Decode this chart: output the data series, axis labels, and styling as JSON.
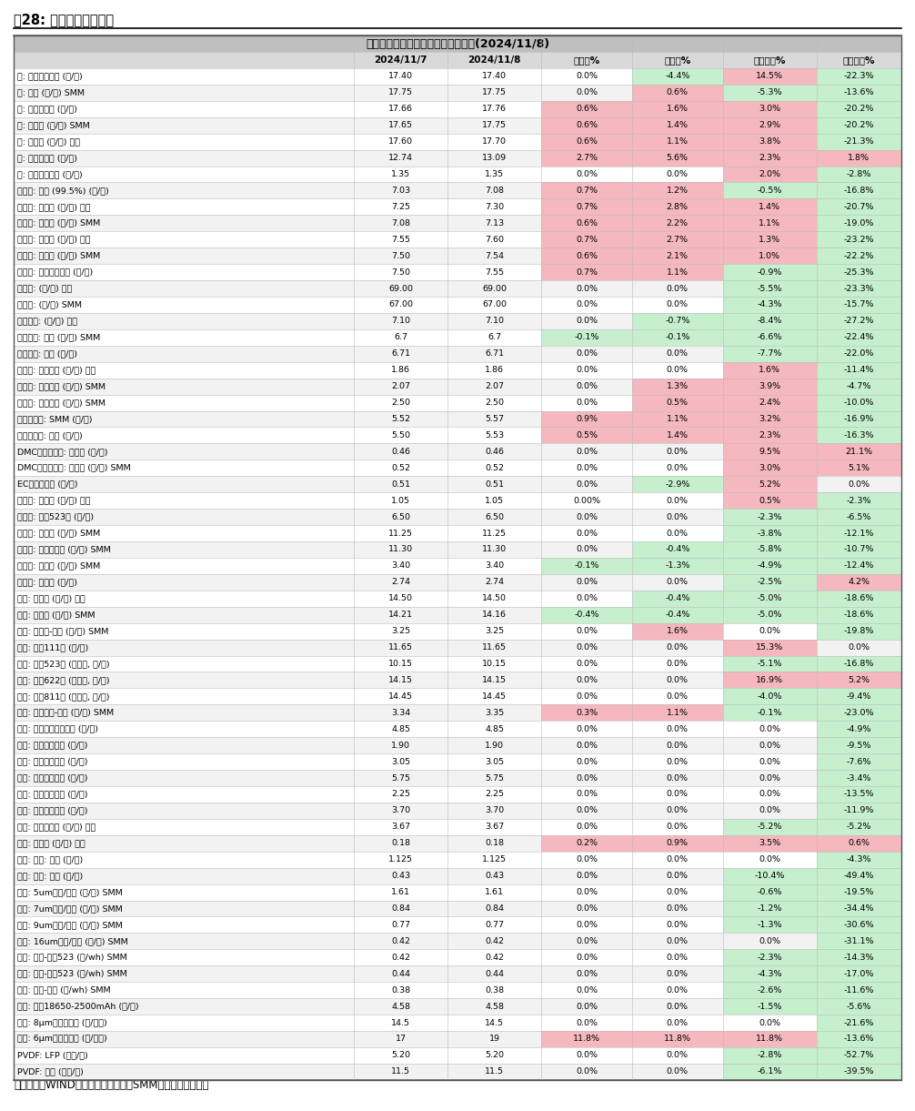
{
  "title": "》东吴电新「 锂电材料价格每日涨跌(2024/11/8)",
  "figure_title": "图28: 锂电材料价格情况",
  "footer": "数据来源：WIND、鑫樱资讯、百川、SMM、东吴证券研究所",
  "title_text": "【东吴电新】锂电材料价格每日涨跌(2024/11/8)",
  "headers": [
    "",
    "2024/11/7",
    "2024/11/8",
    "日环比%",
    "周环比%",
    "月初环比%",
    "年初环比%"
  ],
  "rows": [
    [
      "钔: 长江有色市场 (万/吨)",
      "17.40",
      "17.40",
      "0.0%",
      "-4.4%",
      "14.5%",
      "-22.3%"
    ],
    [
      "钔: 钔粉 (万/吨) SMM",
      "17.75",
      "17.75",
      "0.0%",
      "0.6%",
      "-5.3%",
      "-13.6%"
    ],
    [
      "钔: 金川赞比亚 (万/吨)",
      "17.66",
      "17.76",
      "0.6%",
      "1.6%",
      "3.0%",
      "-20.2%"
    ],
    [
      "钔: 电解钔 (万/吨) SMM",
      "17.65",
      "17.75",
      "0.6%",
      "1.4%",
      "2.9%",
      "-20.2%"
    ],
    [
      "钔: 金属钔 (万/吨) 百川",
      "17.60",
      "17.70",
      "0.6%",
      "1.1%",
      "3.8%",
      "-21.3%"
    ],
    [
      "镖: 上海金属网 (万/吨)",
      "12.74",
      "13.09",
      "2.7%",
      "5.6%",
      "2.3%",
      "1.8%"
    ],
    [
      "锰: 长江有色市场 (万/吨)",
      "1.35",
      "1.35",
      "0.0%",
      "0.0%",
      "2.0%",
      "-2.8%"
    ],
    [
      "碳酸锂: 国产 (99.5%) (万/吨)",
      "7.03",
      "7.08",
      "0.7%",
      "1.2%",
      "-0.5%",
      "-16.8%"
    ],
    [
      "碳酸锂: 工业级 (万/吨) 百川",
      "7.25",
      "7.30",
      "0.7%",
      "2.8%",
      "1.4%",
      "-20.7%"
    ],
    [
      "碳酸锂: 工业级 (万/吨) SMM",
      "7.08",
      "7.13",
      "0.6%",
      "2.2%",
      "1.1%",
      "-19.0%"
    ],
    [
      "碳酸锂: 电池级 (万/吨) 百川",
      "7.55",
      "7.60",
      "0.7%",
      "2.7%",
      "1.3%",
      "-23.2%"
    ],
    [
      "碳酸锂: 电池级 (万/吨) SMM",
      "7.50",
      "7.54",
      "0.6%",
      "2.1%",
      "1.0%",
      "-22.2%"
    ],
    [
      "碳酸锂: 国产主流厂商 (万/吨)",
      "7.50",
      "7.55",
      "0.7%",
      "1.1%",
      "-0.9%",
      "-25.3%"
    ],
    [
      "金属锂: (万/吨) 百川",
      "69.00",
      "69.00",
      "0.0%",
      "0.0%",
      "-5.5%",
      "-23.3%"
    ],
    [
      "金属锂: (万/吨) SMM",
      "67.00",
      "67.00",
      "0.0%",
      "0.0%",
      "-4.3%",
      "-15.7%"
    ],
    [
      "氢氧化锂: (万/吨) 百川",
      "7.10",
      "7.10",
      "0.0%",
      "-0.7%",
      "-8.4%",
      "-27.2%"
    ],
    [
      "氢氧化锂: 国产 (万/吨) SMM",
      "6.7",
      "6.7",
      "-0.1%",
      "-0.1%",
      "-6.6%",
      "-22.4%"
    ],
    [
      "氢氧化锂: 国产 (万/吨)",
      "6.71",
      "6.71",
      "0.0%",
      "0.0%",
      "-7.7%",
      "-22.0%"
    ],
    [
      "电解液: 磷酸铁锂 (万/吨) 百川",
      "1.86",
      "1.86",
      "0.0%",
      "0.0%",
      "1.6%",
      "-11.4%"
    ],
    [
      "电解液: 磷酸铁锂 (万/吨) SMM",
      "2.07",
      "2.07",
      "0.0%",
      "1.3%",
      "3.9%",
      "-4.7%"
    ],
    [
      "电解液: 三元动力 (万/吨) SMM",
      "2.50",
      "2.50",
      "0.0%",
      "0.5%",
      "2.4%",
      "-10.0%"
    ],
    [
      "六氟磷酸锂: SMM (万/吨)",
      "5.52",
      "5.57",
      "0.9%",
      "1.1%",
      "3.2%",
      "-16.9%"
    ],
    [
      "六氟磷酸锂: 百川 (万/吨)",
      "5.50",
      "5.53",
      "0.5%",
      "1.4%",
      "2.3%",
      "-16.3%"
    ],
    [
      "DMC碳酸二甲酩: 工业级 (万/吨)",
      "0.46",
      "0.46",
      "0.0%",
      "0.0%",
      "9.5%",
      "21.1%"
    ],
    [
      "DMC碳酸二甲酩: 电池级 (万/吨) SMM",
      "0.52",
      "0.52",
      "0.0%",
      "0.0%",
      "3.0%",
      "5.1%"
    ],
    [
      "EC碳酸乙烯酯 (万/吨)",
      "0.51",
      "0.51",
      "0.0%",
      "-2.9%",
      "5.2%",
      "0.0%"
    ],
    [
      "前驱体: 磷酸铁 (万/吨) 百川",
      "1.05",
      "1.05",
      "0.00%",
      "0.0%",
      "0.5%",
      "-2.3%"
    ],
    [
      "前驱体: 三元523型 (万/吨)",
      "6.50",
      "6.50",
      "0.0%",
      "0.0%",
      "-2.3%",
      "-6.5%"
    ],
    [
      "前驱体: 氧化钔 (万/吨) SMM",
      "11.25",
      "11.25",
      "0.0%",
      "0.0%",
      "-3.8%",
      "-12.1%"
    ],
    [
      "前驱体: 四氧化三钔 (万/吨) SMM",
      "11.30",
      "11.30",
      "0.0%",
      "-0.4%",
      "-5.8%",
      "-10.7%"
    ],
    [
      "前驱体: 氧化钔 (万/吨) SMM",
      "3.40",
      "3.40",
      "-0.1%",
      "-1.3%",
      "-4.9%",
      "-12.4%"
    ],
    [
      "前驱体: 硫酸镖 (万/吨)",
      "2.74",
      "2.74",
      "0.0%",
      "0.0%",
      "-2.5%",
      "4.2%"
    ],
    [
      "正极: 钔酸锂 (万/吨) 百川",
      "14.50",
      "14.50",
      "0.0%",
      "-0.4%",
      "-5.0%",
      "-18.6%"
    ],
    [
      "正极: 钔酸锂 (万/吨) SMM",
      "14.21",
      "14.16",
      "-0.4%",
      "-0.4%",
      "-5.0%",
      "-18.6%"
    ],
    [
      "正极: 锰酸锂-动力 (万/吨) SMM",
      "3.25",
      "3.25",
      "0.0%",
      "1.6%",
      "0.0%",
      "-19.8%"
    ],
    [
      "正极: 三元111型 (万/吨)",
      "11.65",
      "11.65",
      "0.0%",
      "0.0%",
      "15.3%",
      "0.0%"
    ],
    [
      "正极: 三元523型 (单晶型, 万/吨)",
      "10.15",
      "10.15",
      "0.0%",
      "0.0%",
      "-5.1%",
      "-16.8%"
    ],
    [
      "正极: 三元622型 (单晶型, 万/吨)",
      "14.15",
      "14.15",
      "0.0%",
      "0.0%",
      "16.9%",
      "5.2%"
    ],
    [
      "正极: 三元811型 (单晶型, 万/吨)",
      "14.45",
      "14.45",
      "0.0%",
      "0.0%",
      "-4.0%",
      "-9.4%"
    ],
    [
      "正极: 磷酸铁锂-动力 (万/吨) SMM",
      "3.34",
      "3.35",
      "0.3%",
      "1.1%",
      "-0.1%",
      "-23.0%"
    ],
    [
      "负极: 人造石墨高端动力 (万/吨)",
      "4.85",
      "4.85",
      "0.0%",
      "0.0%",
      "0.0%",
      "-4.9%"
    ],
    [
      "负极: 人造石墨低端 (万/吨)",
      "1.90",
      "1.90",
      "0.0%",
      "0.0%",
      "0.0%",
      "-9.5%"
    ],
    [
      "负极: 人造石墨中端 (万/吨)",
      "3.05",
      "3.05",
      "0.0%",
      "0.0%",
      "0.0%",
      "-7.6%"
    ],
    [
      "负极: 天然石墨高端 (万/吨)",
      "5.75",
      "5.75",
      "0.0%",
      "0.0%",
      "0.0%",
      "-3.4%"
    ],
    [
      "负极: 天然石墨低端 (万/吨)",
      "2.25",
      "2.25",
      "0.0%",
      "0.0%",
      "0.0%",
      "-13.5%"
    ],
    [
      "负极: 天然石墨中端 (万/吨)",
      "3.70",
      "3.70",
      "0.0%",
      "0.0%",
      "0.0%",
      "-11.9%"
    ],
    [
      "负极: 碳负极材料 (万/吨) 百川",
      "3.67",
      "3.67",
      "0.0%",
      "0.0%",
      "-5.2%",
      "-5.2%"
    ],
    [
      "负极: 石油焦 (万/吨) 百川",
      "0.18",
      "0.18",
      "0.2%",
      "0.9%",
      "3.5%",
      "0.6%"
    ],
    [
      "隔膜: 湿法: 百川 (元/平)",
      "1.125",
      "1.125",
      "0.0%",
      "0.0%",
      "0.0%",
      "-4.3%"
    ],
    [
      "隔膜: 干法: 百川 (元/平)",
      "0.43",
      "0.43",
      "0.0%",
      "0.0%",
      "-10.4%",
      "-49.4%"
    ],
    [
      "隔膜: 5um湿法/国产 (元/平) SMM",
      "1.61",
      "1.61",
      "0.0%",
      "0.0%",
      "-0.6%",
      "-19.5%"
    ],
    [
      "隔膜: 7um湿法/国产 (元/平) SMM",
      "0.84",
      "0.84",
      "0.0%",
      "0.0%",
      "-1.2%",
      "-34.4%"
    ],
    [
      "隔膜: 9um湿法/国产 (元/平) SMM",
      "0.77",
      "0.77",
      "0.0%",
      "0.0%",
      "-1.3%",
      "-30.6%"
    ],
    [
      "隔膜: 16um干法/国产 (元/平) SMM",
      "0.42",
      "0.42",
      "0.0%",
      "0.0%",
      "0.0%",
      "-31.1%"
    ],
    [
      "电池: 方形-三元523 (元/wh) SMM",
      "0.42",
      "0.42",
      "0.0%",
      "0.0%",
      "-2.3%",
      "-14.3%"
    ],
    [
      "电池: 软包-三元523 (元/wh) SMM",
      "0.44",
      "0.44",
      "0.0%",
      "0.0%",
      "-4.3%",
      "-17.0%"
    ],
    [
      "电池: 方形-铁锂 (元/wh) SMM",
      "0.38",
      "0.38",
      "0.0%",
      "0.0%",
      "-2.6%",
      "-11.6%"
    ],
    [
      "电池: 圆枖18650-2500mAh (元/支)",
      "4.58",
      "4.58",
      "0.0%",
      "0.0%",
      "-1.5%",
      "-5.6%"
    ],
    [
      "铜箔: 8μm国产加工费 (元/公斤)",
      "14.5",
      "14.5",
      "0.0%",
      "0.0%",
      "0.0%",
      "-21.6%"
    ],
    [
      "铜箔: 6μm国产加工费 (元/公斤)",
      "17",
      "19",
      "11.8%",
      "11.8%",
      "11.8%",
      "-13.6%"
    ],
    [
      "PVDF: LFP (万元/吨)",
      "5.20",
      "5.20",
      "0.0%",
      "0.0%",
      "-2.8%",
      "-52.7%"
    ],
    [
      "PVDF: 三元 (万元/吨)",
      "11.5",
      "11.5",
      "0.0%",
      "0.0%",
      "-6.1%",
      "-39.5%"
    ]
  ],
  "header_bg": "#d9d9d9",
  "title_bg": "#bfbfbf",
  "row_bg_alt": "#f2f2f2",
  "row_bg": "#ffffff",
  "pos_color": "#f4b8be",
  "neg_color": "#c6efce"
}
